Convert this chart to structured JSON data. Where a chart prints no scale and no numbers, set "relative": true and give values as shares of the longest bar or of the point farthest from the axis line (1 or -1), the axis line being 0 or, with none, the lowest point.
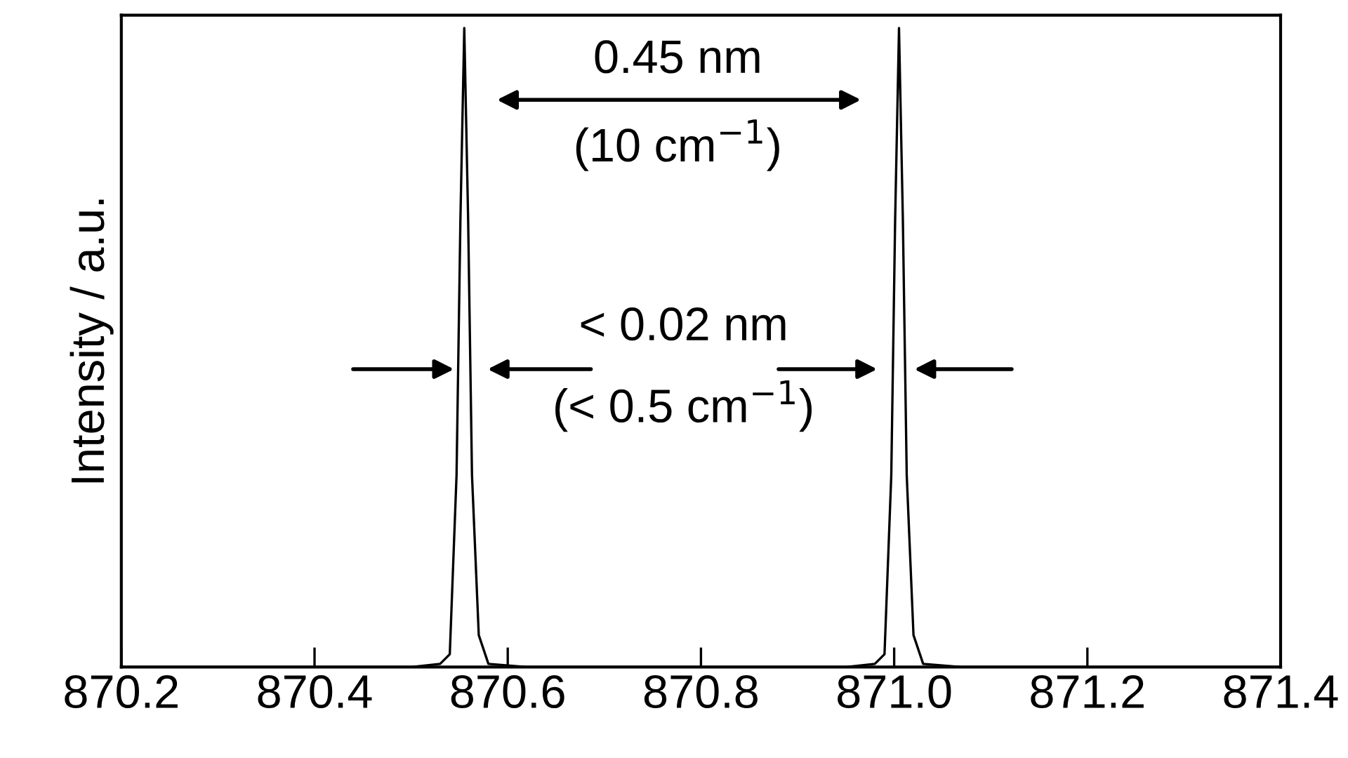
{
  "chart_data": {
    "type": "line",
    "relative": true,
    "ylabel": "Intensity / a.u.",
    "x": [
      870.2,
      870.5,
      870.53,
      870.54,
      870.547,
      870.551,
      870.555,
      870.559,
      870.563,
      870.57,
      870.58,
      870.62,
      870.95,
      870.98,
      870.99,
      870.997,
      871.001,
      871.005,
      871.009,
      871.013,
      871.02,
      871.03,
      871.07,
      871.4
    ],
    "series": [
      {
        "color": "#000000",
        "values": [
          0,
          0,
          0.005,
          0.02,
          0.3,
          0.7,
          1,
          0.7,
          0.3,
          0.05,
          0.005,
          0,
          0,
          0.005,
          0.02,
          0.3,
          0.7,
          1,
          0.7,
          0.3,
          0.05,
          0.005,
          0,
          0
        ]
      }
    ],
    "xlim": [
      870.2,
      871.4
    ],
    "xticks": [
      870.2,
      870.4,
      870.6,
      870.8,
      {
        "value": 871.0,
        "label": "871.0"
      },
      871.2,
      871.4
    ],
    "annotations": [
      "0.45 nm",
      "(10 cm$^{−1}$)",
      "< 0.02 nm",
      "(< 0.5 cm$^{−1}$)"
    ],
    "grid": false,
    "legend": false
  }
}
